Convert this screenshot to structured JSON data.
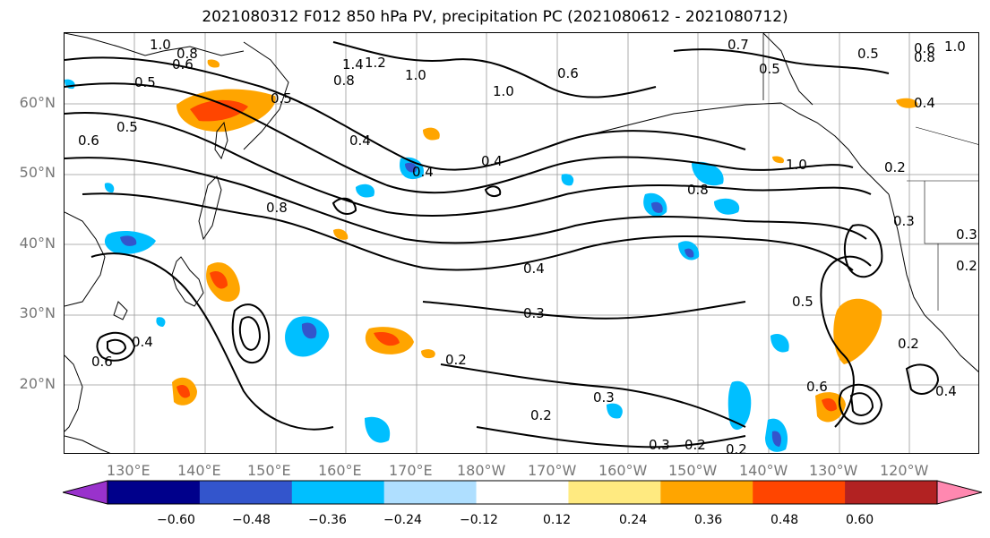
{
  "title": "2021080312 F012 850 hPa PV, precipitation PC (2021080612 - 2021080712)",
  "map": {
    "lat_labels": [
      "60°N",
      "50°N",
      "40°N",
      "30°N",
      "20°N"
    ],
    "lon_labels": [
      "130°E",
      "140°E",
      "150°E",
      "160°E",
      "170°E",
      "180°W",
      "170°W",
      "160°W",
      "150°W",
      "140°W",
      "130°W",
      "120°W"
    ],
    "contour_labels": [
      "1.0",
      "0.8",
      "0.6",
      "0.5",
      "0.6",
      "0.5",
      "1.4",
      "1.2",
      "1.0",
      "0.8",
      "1.0",
      "0.4",
      "0.4",
      "0.8",
      "0.6",
      "0.5",
      "0.4",
      "1.0",
      "0.8",
      "0.2",
      "0.3",
      "0.4",
      "0.3",
      "0.2",
      "0.3",
      "0.2",
      "0.3",
      "0.2",
      "0.2",
      "0.5",
      "0.6",
      "0.2",
      "0.4",
      "0.5",
      "0.6",
      "0.8",
      "1.0",
      "0.7",
      "0.5",
      "0.4",
      "0.2",
      "0.4",
      "0.6",
      "0.3"
    ]
  },
  "colorbar": {
    "colors": [
      "#9932cc",
      "#00008b",
      "#3355cc",
      "#00bfff",
      "#afdfff",
      "#ffffff",
      "#ffea80",
      "#ffa500",
      "#ff4500",
      "#b22222",
      "#ff88b0"
    ],
    "tick_labels": [
      "−0.60",
      "−0.48",
      "−0.36",
      "−0.24",
      "−0.12",
      "0.12",
      "0.24",
      "0.36",
      "0.48",
      "0.60"
    ]
  }
}
